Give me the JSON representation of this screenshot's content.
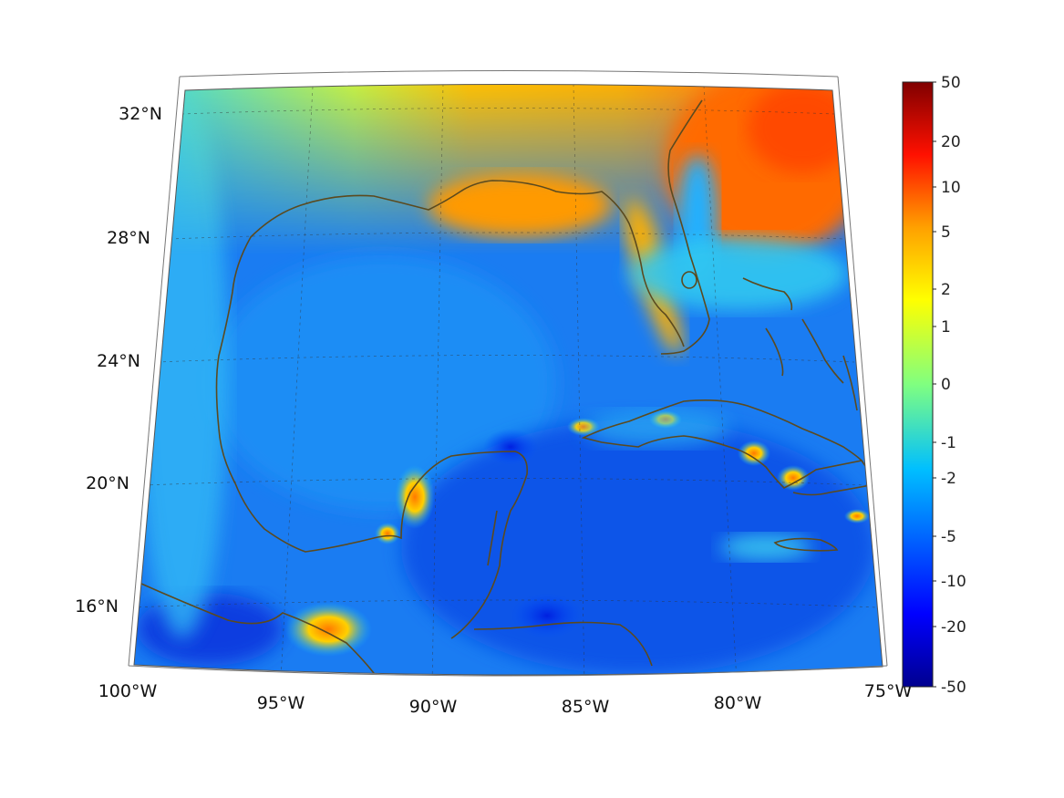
{
  "map": {
    "lon_labels": [
      "100°W",
      "95°W",
      "90°W",
      "85°W",
      "80°W",
      "75°W"
    ],
    "lat_labels": [
      "32°N",
      "28°N",
      "24°N",
      "20°N",
      "16°N"
    ],
    "extent": {
      "lon": [
        -100,
        -75
      ],
      "lat": [
        14,
        33
      ]
    },
    "coastline_color": "#5b4a1f",
    "gridlines": "on"
  },
  "colorbar": {
    "labels": [
      "50",
      "20",
      "10",
      "5",
      "2",
      "1",
      "0",
      "-1",
      "-2",
      "-5",
      "-10",
      "-20",
      "-50"
    ],
    "colormap": "jet"
  }
}
